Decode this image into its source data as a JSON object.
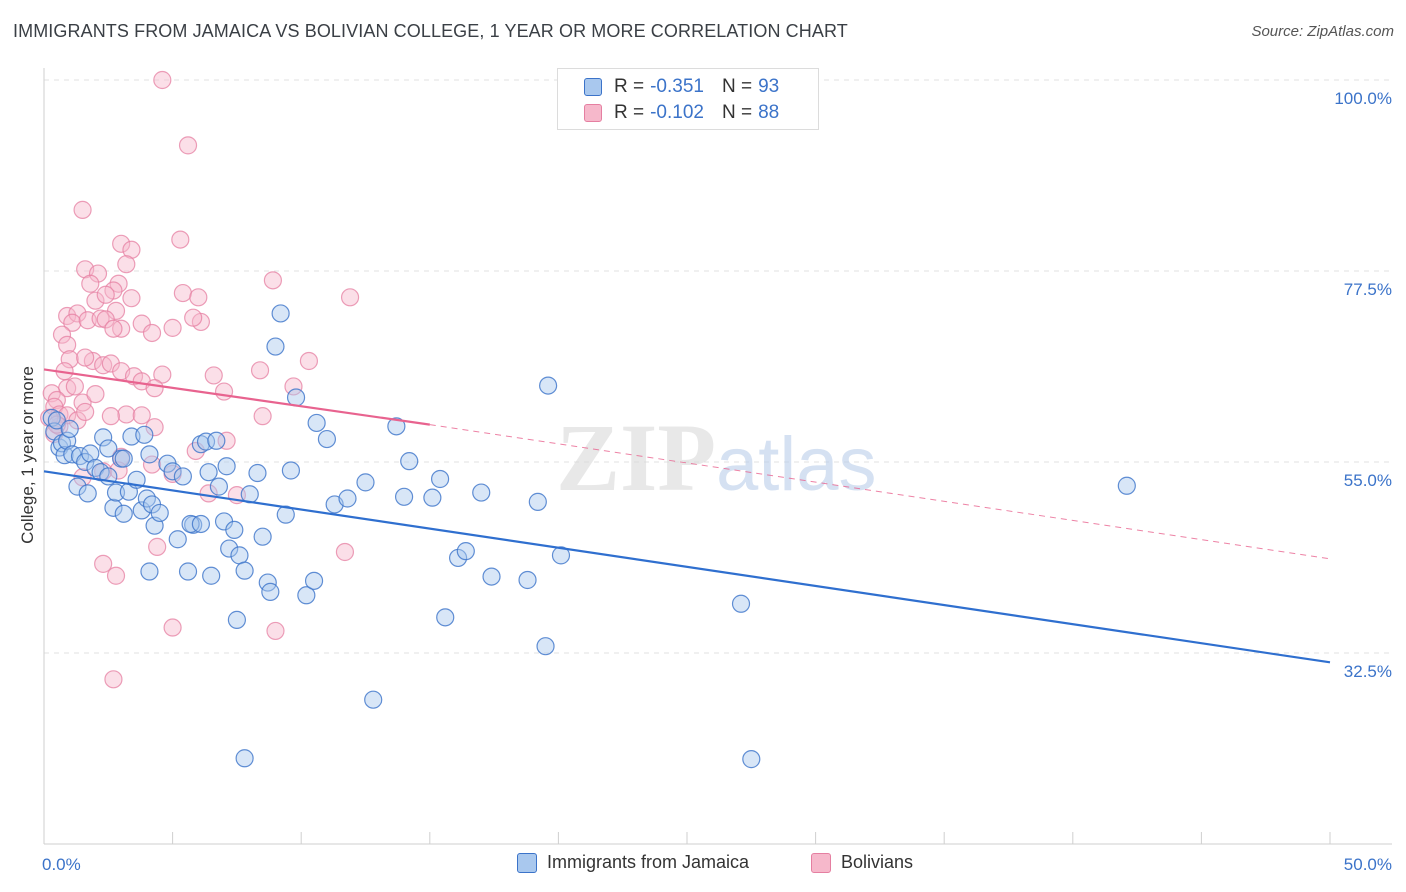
{
  "title": "IMMIGRANTS FROM JAMAICA VS BOLIVIAN COLLEGE, 1 YEAR OR MORE CORRELATION CHART",
  "source": "Source: ZipAtlas.com",
  "watermark": {
    "bold": "ZIP",
    "light": "atlas"
  },
  "legend": {
    "rows": [
      {
        "r_label": "R =",
        "r_value": "-0.351",
        "n_label": "N =",
        "n_value": "93"
      },
      {
        "r_label": "R =",
        "r_value": "-0.102",
        "n_label": "N =",
        "n_value": "88"
      }
    ]
  },
  "bottom_legend": [
    "Immigrants from Jamaica",
    "Bolivians"
  ],
  "colors": {
    "blue_fill": "#a9c8ee",
    "blue_stroke": "#3b73c9",
    "blue_line": "#2f6fcf",
    "pink_fill": "#f6b8cb",
    "pink_stroke": "#e57fa1",
    "pink_line": "#e8638f",
    "tick_text": "#3b73c9",
    "grid": "#e2e2e2"
  },
  "chart_data": {
    "type": "scatter",
    "title": "IMMIGRANTS FROM JAMAICA VS BOLIVIAN COLLEGE, 1 YEAR OR MORE CORRELATION CHART",
    "xlabel": "",
    "ylabel": "College, 1 year or more",
    "x_tick_labels": [
      "0.0%",
      "50.0%"
    ],
    "y_tick_labels": [
      "100.0%",
      "77.5%",
      "55.0%",
      "32.5%"
    ],
    "xlim": [
      0,
      50
    ],
    "ylim": [
      16,
      104
    ],
    "grid": true,
    "legend_position": "top-center",
    "series": [
      {
        "name": "Immigrants from Jamaica",
        "r": -0.351,
        "n": 93,
        "trend": {
          "x": [
            0,
            50
          ],
          "y": [
            53.9,
            31.4
          ],
          "dashed_extension": false
        },
        "points": [
          [
            0.3,
            60.2
          ],
          [
            0.4,
            58.6
          ],
          [
            0.5,
            59.9
          ],
          [
            0.6,
            56.7
          ],
          [
            0.7,
            57.2
          ],
          [
            0.8,
            55.8
          ],
          [
            0.9,
            57.5
          ],
          [
            1.0,
            58.9
          ],
          [
            1.1,
            55.9
          ],
          [
            1.3,
            52.1
          ],
          [
            1.4,
            55.7
          ],
          [
            1.6,
            55.0
          ],
          [
            1.7,
            51.3
          ],
          [
            1.8,
            56.0
          ],
          [
            2.0,
            54.3
          ],
          [
            2.2,
            53.8
          ],
          [
            2.3,
            57.9
          ],
          [
            2.5,
            56.6
          ],
          [
            2.7,
            49.6
          ],
          [
            2.8,
            51.4
          ],
          [
            3.0,
            55.4
          ],
          [
            3.1,
            48.9
          ],
          [
            3.3,
            51.5
          ],
          [
            3.4,
            58.0
          ],
          [
            3.6,
            52.9
          ],
          [
            3.8,
            49.3
          ],
          [
            3.9,
            58.2
          ],
          [
            4.0,
            50.7
          ],
          [
            4.1,
            55.9
          ],
          [
            4.2,
            50.0
          ],
          [
            4.3,
            47.5
          ],
          [
            4.5,
            49.0
          ],
          [
            4.8,
            54.8
          ],
          [
            5.0,
            53.9
          ],
          [
            5.2,
            45.9
          ],
          [
            5.4,
            53.3
          ],
          [
            5.6,
            42.1
          ],
          [
            5.8,
            47.6
          ],
          [
            6.1,
            57.1
          ],
          [
            6.3,
            57.4
          ],
          [
            6.4,
            53.8
          ],
          [
            6.7,
            57.5
          ],
          [
            6.8,
            52.1
          ],
          [
            7.0,
            48.0
          ],
          [
            7.1,
            54.5
          ],
          [
            7.2,
            44.8
          ],
          [
            7.4,
            47.0
          ],
          [
            7.6,
            44.0
          ],
          [
            7.8,
            42.2
          ],
          [
            8.0,
            51.2
          ],
          [
            8.3,
            53.7
          ],
          [
            8.5,
            46.2
          ],
          [
            8.7,
            40.8
          ],
          [
            9.0,
            68.6
          ],
          [
            9.2,
            72.5
          ],
          [
            9.4,
            48.8
          ],
          [
            9.6,
            54.0
          ],
          [
            9.8,
            62.6
          ],
          [
            10.2,
            39.3
          ],
          [
            10.6,
            59.6
          ],
          [
            11.0,
            57.7
          ],
          [
            11.3,
            50.0
          ],
          [
            11.8,
            50.7
          ],
          [
            12.5,
            52.6
          ],
          [
            12.8,
            27.0
          ],
          [
            13.7,
            59.2
          ],
          [
            14.0,
            50.9
          ],
          [
            14.2,
            55.1
          ],
          [
            15.1,
            50.8
          ],
          [
            15.4,
            53.0
          ],
          [
            15.6,
            36.7
          ],
          [
            16.1,
            43.7
          ],
          [
            16.4,
            44.5
          ],
          [
            17.0,
            51.4
          ],
          [
            17.4,
            41.5
          ],
          [
            18.8,
            41.1
          ],
          [
            19.2,
            50.3
          ],
          [
            19.5,
            33.3
          ],
          [
            19.6,
            64.0
          ],
          [
            20.1,
            44.0
          ],
          [
            5.7,
            47.7
          ],
          [
            6.5,
            41.6
          ],
          [
            4.1,
            42.1
          ],
          [
            7.5,
            36.4
          ],
          [
            8.8,
            39.7
          ],
          [
            10.5,
            41.0
          ],
          [
            27.1,
            38.3
          ],
          [
            27.5,
            20.0
          ],
          [
            7.8,
            20.1
          ],
          [
            42.1,
            52.2
          ],
          [
            2.5,
            53.3
          ],
          [
            3.1,
            55.4
          ],
          [
            6.1,
            47.7
          ]
        ]
      },
      {
        "name": "Bolivians",
        "r": -0.102,
        "n": 88,
        "trend": {
          "x": [
            0,
            15
          ],
          "y": [
            65.9,
            59.4
          ],
          "dashed_to": [
            50,
            43.6
          ]
        },
        "points": [
          [
            4.6,
            100.0
          ],
          [
            5.6,
            92.3
          ],
          [
            1.5,
            84.7
          ],
          [
            5.3,
            81.2
          ],
          [
            3.0,
            80.7
          ],
          [
            3.4,
            80.0
          ],
          [
            3.2,
            78.3
          ],
          [
            1.6,
            77.7
          ],
          [
            2.1,
            77.2
          ],
          [
            2.9,
            76.0
          ],
          [
            8.9,
            76.4
          ],
          [
            1.8,
            76.0
          ],
          [
            2.7,
            75.2
          ],
          [
            5.4,
            74.9
          ],
          [
            2.0,
            74.0
          ],
          [
            2.4,
            74.7
          ],
          [
            3.4,
            74.3
          ],
          [
            6.0,
            74.4
          ],
          [
            11.9,
            74.4
          ],
          [
            2.8,
            72.8
          ],
          [
            0.9,
            72.2
          ],
          [
            1.3,
            72.5
          ],
          [
            1.1,
            71.4
          ],
          [
            1.7,
            71.7
          ],
          [
            3.8,
            71.3
          ],
          [
            2.2,
            71.9
          ],
          [
            5.0,
            70.8
          ],
          [
            6.1,
            71.5
          ],
          [
            5.8,
            72.0
          ],
          [
            2.4,
            71.8
          ],
          [
            3.0,
            70.7
          ],
          [
            4.2,
            70.2
          ],
          [
            0.7,
            70.0
          ],
          [
            2.7,
            70.7
          ],
          [
            0.9,
            68.8
          ],
          [
            1.0,
            67.1
          ],
          [
            1.9,
            66.9
          ],
          [
            1.6,
            67.3
          ],
          [
            2.3,
            66.4
          ],
          [
            2.6,
            66.6
          ],
          [
            10.3,
            66.9
          ],
          [
            0.8,
            65.7
          ],
          [
            3.0,
            65.7
          ],
          [
            3.5,
            65.1
          ],
          [
            4.6,
            65.3
          ],
          [
            6.6,
            65.2
          ],
          [
            8.4,
            65.8
          ],
          [
            3.8,
            64.5
          ],
          [
            4.3,
            63.7
          ],
          [
            0.9,
            63.7
          ],
          [
            1.2,
            63.9
          ],
          [
            7.0,
            63.3
          ],
          [
            9.7,
            63.9
          ],
          [
            0.3,
            63.1
          ],
          [
            0.5,
            62.3
          ],
          [
            1.5,
            62.0
          ],
          [
            2.0,
            63.0
          ],
          [
            0.4,
            61.5
          ],
          [
            0.6,
            60.6
          ],
          [
            0.9,
            60.5
          ],
          [
            1.3,
            59.9
          ],
          [
            1.6,
            60.9
          ],
          [
            3.2,
            60.6
          ],
          [
            3.8,
            60.5
          ],
          [
            2.6,
            60.4
          ],
          [
            8.5,
            60.4
          ],
          [
            0.6,
            59.2
          ],
          [
            4.3,
            59.1
          ],
          [
            0.4,
            58.3
          ],
          [
            7.1,
            57.5
          ],
          [
            5.9,
            56.3
          ],
          [
            3.0,
            55.6
          ],
          [
            4.2,
            54.7
          ],
          [
            1.5,
            53.2
          ],
          [
            2.3,
            53.9
          ],
          [
            5.0,
            53.6
          ],
          [
            2.9,
            54.0
          ],
          [
            6.4,
            51.3
          ],
          [
            7.5,
            51.1
          ],
          [
            2.3,
            43.0
          ],
          [
            2.8,
            41.6
          ],
          [
            4.4,
            45.0
          ],
          [
            11.7,
            44.4
          ],
          [
            5.0,
            35.5
          ],
          [
            9.0,
            35.1
          ],
          [
            2.7,
            29.4
          ],
          [
            0.2,
            60.2
          ],
          [
            0.5,
            59.4
          ]
        ]
      }
    ]
  }
}
